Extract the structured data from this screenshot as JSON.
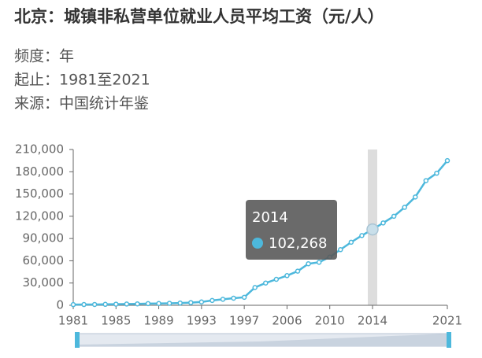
{
  "chart_data": {
    "type": "line",
    "title": "北京：城镇非私营单位就业人员平均工资（元/人）",
    "subtitle": [
      "频度：年",
      "起止：1981至2021",
      "来源：中国统计年鉴"
    ],
    "categories": [
      "1981",
      null,
      null,
      null,
      "1985",
      null,
      null,
      null,
      "1989",
      null,
      null,
      null,
      "1993",
      null,
      null,
      null,
      "1997",
      null,
      null,
      null,
      "2006",
      null,
      null,
      null,
      "2010",
      null,
      null,
      null,
      "2014",
      null,
      null,
      null,
      null,
      null,
      null,
      "2021"
    ],
    "values": [
      900,
      1000,
      1100,
      1300,
      1500,
      1700,
      1900,
      2200,
      2400,
      2700,
      3000,
      3600,
      4500,
      6500,
      8100,
      9600,
      10800,
      24000,
      30000,
      35000,
      40000,
      46000,
      56000,
      58000,
      65000,
      75000,
      85000,
      94000,
      102268,
      111000,
      120000,
      132000,
      146000,
      168000,
      178000,
      195000
    ],
    "value_labels": [
      null,
      null,
      null,
      null,
      null,
      null,
      null,
      null,
      null,
      null,
      null,
      null,
      null,
      null,
      null,
      null,
      null,
      null,
      null,
      null,
      null,
      null,
      null,
      null,
      null,
      null,
      null,
      null,
      "102,268",
      null,
      null,
      null,
      null,
      null,
      null,
      null
    ],
    "color": "#4db8dc",
    "ylim": [
      0,
      210000
    ],
    "yticks": [
      0,
      {
        "value": 30000,
        "label": "30,000"
      },
      {
        "value": 60000,
        "label": "60,000"
      },
      {
        "value": 90000,
        "label": "90,000"
      },
      {
        "value": 120000,
        "label": "120,000"
      },
      {
        "value": 150000,
        "label": "150,000"
      },
      {
        "value": 180000,
        "label": "180,000"
      },
      {
        "value": 210000,
        "label": "210,000"
      }
    ],
    "tooltip_index": 28
  }
}
